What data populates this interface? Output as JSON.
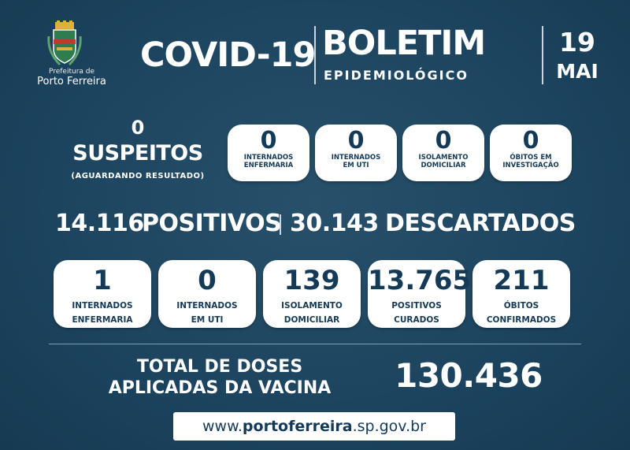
{
  "header": {
    "org_line1": "Prefeitura de",
    "org_line2": "Porto Ferreira",
    "title_left": "COVID-19",
    "title_right": "BOLETIM",
    "subtitle": "EPIDEMIOLÓGICO",
    "date_day": "19",
    "date_month": "MAI"
  },
  "suspects": {
    "value": "0",
    "label": "SUSPEITOS",
    "sublabel": "(AGUARDANDO RESULTADO)",
    "cards": [
      {
        "value": "0",
        "line1": "INTERNADOS",
        "line2": "ENFERMARIA"
      },
      {
        "value": "0",
        "line1": "INTERNADOS",
        "line2": "EM UTI"
      },
      {
        "value": "0",
        "line1": "ISOLAMENTO",
        "line2": "DOMICILIAR"
      },
      {
        "value": "0",
        "line1": "ÓBITOS EM",
        "line2": "INVESTIGAÇÃO"
      }
    ]
  },
  "totals": {
    "positives_value": "14.116",
    "positives_label": "POSITIVOS",
    "discarded_value": "30.143",
    "discarded_label": "DESCARTADOS"
  },
  "confirmed_cards": [
    {
      "value": "1",
      "line1": "INTERNADOS",
      "line2": "ENFERMARIA"
    },
    {
      "value": "0",
      "line1": "INTERNADOS",
      "line2": "EM UTI"
    },
    {
      "value": "139",
      "line1": "ISOLAMENTO",
      "line2": "DOMICILIAR"
    },
    {
      "value": "13.765",
      "line1": "POSITIVOS",
      "line2": "CURADOS"
    },
    {
      "value": "211",
      "line1": "ÓBITOS",
      "line2": "CONFIRMADOS"
    }
  ],
  "vaccine": {
    "label_line1": "TOTAL DE DOSES",
    "label_line2": "APLICADAS DA VACINA",
    "value": "130.436"
  },
  "footer": {
    "url_prefix": "www.",
    "url_bold": "portoferreira",
    "url_suffix": ".sp.gov.br"
  }
}
